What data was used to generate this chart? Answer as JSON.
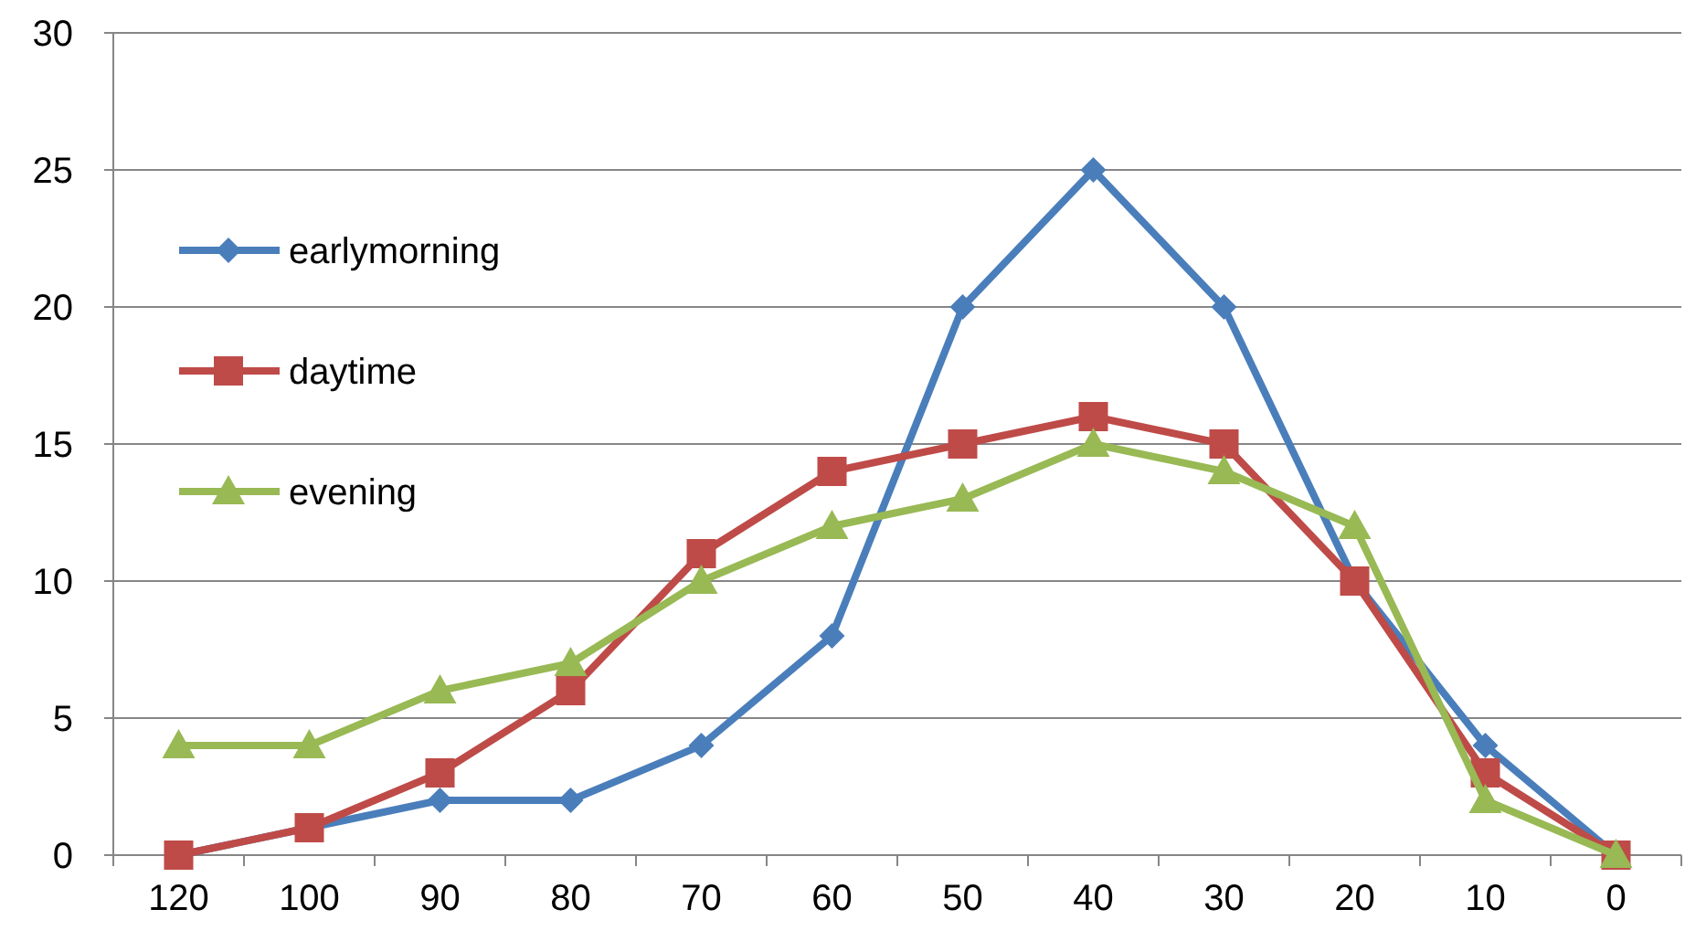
{
  "chart_data": {
    "type": "line",
    "categories": [
      "120",
      "100",
      "90",
      "80",
      "70",
      "60",
      "50",
      "40",
      "30",
      "20",
      "10",
      "0"
    ],
    "series": [
      {
        "name": "earlymorning",
        "color": "#4a7ebb",
        "marker": "diamond",
        "values": [
          0,
          1,
          2,
          2,
          4,
          8,
          20,
          25,
          20,
          10,
          4,
          0
        ]
      },
      {
        "name": "daytime",
        "color": "#be4b48",
        "marker": "square",
        "values": [
          0,
          1,
          3,
          6,
          11,
          14,
          15,
          16,
          15,
          10,
          3,
          0
        ]
      },
      {
        "name": "evening",
        "color": "#98b954",
        "marker": "triangle",
        "values": [
          4,
          4,
          6,
          7,
          10,
          12,
          13,
          15,
          14,
          12,
          2,
          0
        ]
      }
    ],
    "ylim": [
      0,
      30
    ],
    "yticks": [
      0,
      5,
      10,
      15,
      20,
      25,
      30
    ],
    "grid": "y",
    "legend": "top left"
  }
}
